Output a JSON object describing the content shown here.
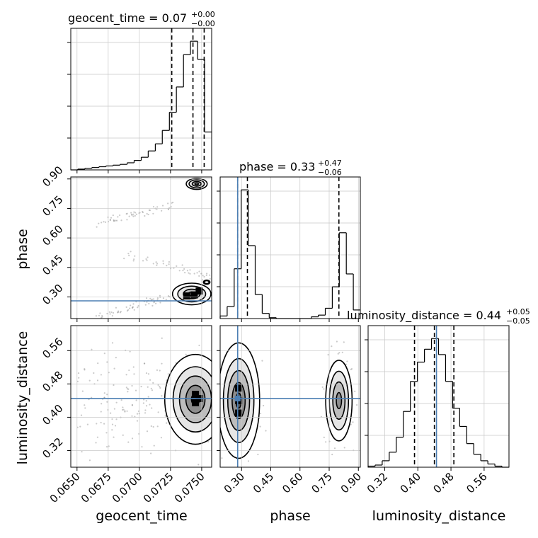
{
  "colors": {
    "truth": "#4c7fb3",
    "hist": "#000000",
    "grid": "#c8c8c8",
    "points": "#8a8a8a"
  },
  "chart_data": {
    "type": "corner",
    "parameters": [
      {
        "name": "geocent_time",
        "title_main": "geocent_time = 0.07",
        "title_plus": "+0.00",
        "title_minus": "−0.00",
        "axis_label": "geocent_time",
        "range": [
          0.0645,
          0.0758
        ],
        "ticks": [
          0.065,
          0.0675,
          0.07,
          0.0725,
          0.075
        ],
        "tick_labels": [
          "0.0650",
          "0.0675",
          "0.0700",
          "0.0725",
          "0.0750"
        ],
        "quantiles": [
          0.0726,
          0.0743,
          0.0752
        ],
        "truth": null,
        "hist": {
          "edges": [
            0.0645,
            0.06506,
            0.06563,
            0.06619,
            0.06676,
            0.06732,
            0.06789,
            0.06845,
            0.06902,
            0.06958,
            0.07015,
            0.07071,
            0.07128,
            0.07184,
            0.07241,
            0.07297,
            0.07354,
            0.0741,
            0.07467,
            0.07523,
            0.0758
          ],
          "counts": [
            0,
            1,
            2,
            3,
            4,
            5,
            6,
            7,
            9,
            12,
            16,
            24,
            33,
            50,
            73,
            105,
            146,
            163,
            140,
            48
          ]
        }
      },
      {
        "name": "phase",
        "title_main": "phase = 0.33",
        "title_plus": "+0.47",
        "title_minus": "−0.06",
        "axis_label": "phase",
        "range": [
          0.19,
          0.91
        ],
        "ticks": [
          0.3,
          0.45,
          0.6,
          0.75,
          0.9
        ],
        "tick_labels": [
          "0.30",
          "0.45",
          "0.60",
          "0.75",
          "0.90"
        ],
        "quantiles": [
          0.28,
          0.33,
          0.8
        ],
        "truth": 0.28,
        "hist": {
          "edges": [
            0.19,
            0.226,
            0.262,
            0.298,
            0.334,
            0.37,
            0.406,
            0.442,
            0.478,
            0.514,
            0.55,
            0.586,
            0.622,
            0.658,
            0.694,
            0.73,
            0.766,
            0.802,
            0.838,
            0.874,
            0.91
          ],
          "counts": [
            3,
            14,
            58,
            150,
            85,
            28,
            6,
            1,
            0,
            0,
            0,
            0,
            0,
            2,
            4,
            12,
            37,
            100,
            52,
            10
          ]
        }
      },
      {
        "name": "luminosity_distance",
        "title_main": "luminosity_distance = 0.44",
        "title_plus": "+0.05",
        "title_minus": "−0.05",
        "axis_label": "luminosity_distance",
        "range": [
          0.28,
          0.62
        ],
        "ticks": [
          0.32,
          0.4,
          0.48,
          0.56
        ],
        "tick_labels": [
          "0.32",
          "0.40",
          "0.48",
          "0.56"
        ],
        "quantiles": [
          0.392,
          0.44,
          0.487
        ],
        "truth": 0.445,
        "hist": {
          "edges": [
            0.28,
            0.297,
            0.314,
            0.331,
            0.348,
            0.365,
            0.382,
            0.399,
            0.416,
            0.433,
            0.45,
            0.467,
            0.484,
            0.501,
            0.518,
            0.535,
            0.552,
            0.569,
            0.586,
            0.603,
            0.62
          ],
          "counts": [
            1,
            2,
            6,
            14,
            28,
            52,
            80,
            98,
            110,
            120,
            105,
            80,
            55,
            38,
            22,
            12,
            6,
            3,
            1,
            0
          ]
        }
      }
    ],
    "pairs": [
      {
        "x": "geocent_time",
        "y": "phase",
        "blobs": [
          {
            "cx": 0.0746,
            "cy": 0.875,
            "sx": 0.00045,
            "sy": 0.015,
            "levels": [
              0.2,
              0.5,
              0.85
            ]
          },
          {
            "cx": 0.0742,
            "cy": 0.315,
            "sx": 0.0007,
            "sy": 0.025,
            "levels": [
              0.25,
              0.6,
              1.0
            ]
          },
          {
            "cx": 0.0754,
            "cy": 0.375,
            "sx": 0.0003,
            "sy": 0.012,
            "levels": [
              0.4
            ]
          }
        ],
        "points": [
          {
            "from": [
              0.066,
              0.665
            ],
            "to": [
              0.0728,
              0.77
            ],
            "n": 55,
            "jitter": [
              0.0002,
              0.012
            ]
          },
          {
            "from": [
              0.0665,
              0.2
            ],
            "to": [
              0.0725,
              0.3
            ],
            "n": 55,
            "jitter": [
              0.0002,
              0.012
            ]
          },
          {
            "from": [
              0.069,
              0.52
            ],
            "to": [
              0.0757,
              0.4
            ],
            "n": 45,
            "jitter": [
              0.0002,
              0.01
            ]
          }
        ],
        "dark_cells": [
          [
            0.0744,
            0.31
          ],
          [
            0.0748,
            0.33
          ],
          [
            0.0738,
            0.305
          ]
        ],
        "truth_y": 0.28
      },
      {
        "x": "geocent_time",
        "y": "luminosity_distance",
        "blobs": [
          {
            "cx": 0.0745,
            "cy": 0.443,
            "sx": 0.0008,
            "sy": 0.035,
            "levels": [
              0.25,
              0.6,
              1.0,
              1.4
            ]
          }
        ],
        "points": [
          {
            "from": [
              0.0655,
              0.44
            ],
            "to": [
              0.0757,
              0.44
            ],
            "n": 230,
            "jitter": [
              0.0025,
              0.06
            ]
          }
        ],
        "dark_cells": [
          [
            0.0745,
            0.435
          ],
          [
            0.0745,
            0.455
          ],
          [
            0.0748,
            0.445
          ]
        ],
        "truth_y": 0.445
      },
      {
        "x": "phase",
        "y": "luminosity_distance",
        "blobs": [
          {
            "cx": 0.285,
            "cy": 0.44,
            "sx": 0.035,
            "sy": 0.045,
            "levels": [
              0.25,
              0.6,
              1.0,
              1.4
            ]
          },
          {
            "cx": 0.8,
            "cy": 0.44,
            "sx": 0.028,
            "sy": 0.04,
            "levels": [
              0.3,
              0.7,
              1.1
            ]
          }
        ],
        "points": [
          {
            "from": [
              0.285,
              0.44
            ],
            "to": [
              0.285,
              0.44
            ],
            "n": 140,
            "jitter": [
              0.05,
              0.065
            ]
          },
          {
            "from": [
              0.8,
              0.44
            ],
            "to": [
              0.8,
              0.44
            ],
            "n": 100,
            "jitter": [
              0.04,
              0.06
            ]
          }
        ],
        "dark_cells": [
          [
            0.285,
            0.44
          ],
          [
            0.285,
            0.41
          ],
          [
            0.285,
            0.47
          ]
        ],
        "truth_x": 0.28,
        "truth_y": 0.445
      }
    ]
  }
}
